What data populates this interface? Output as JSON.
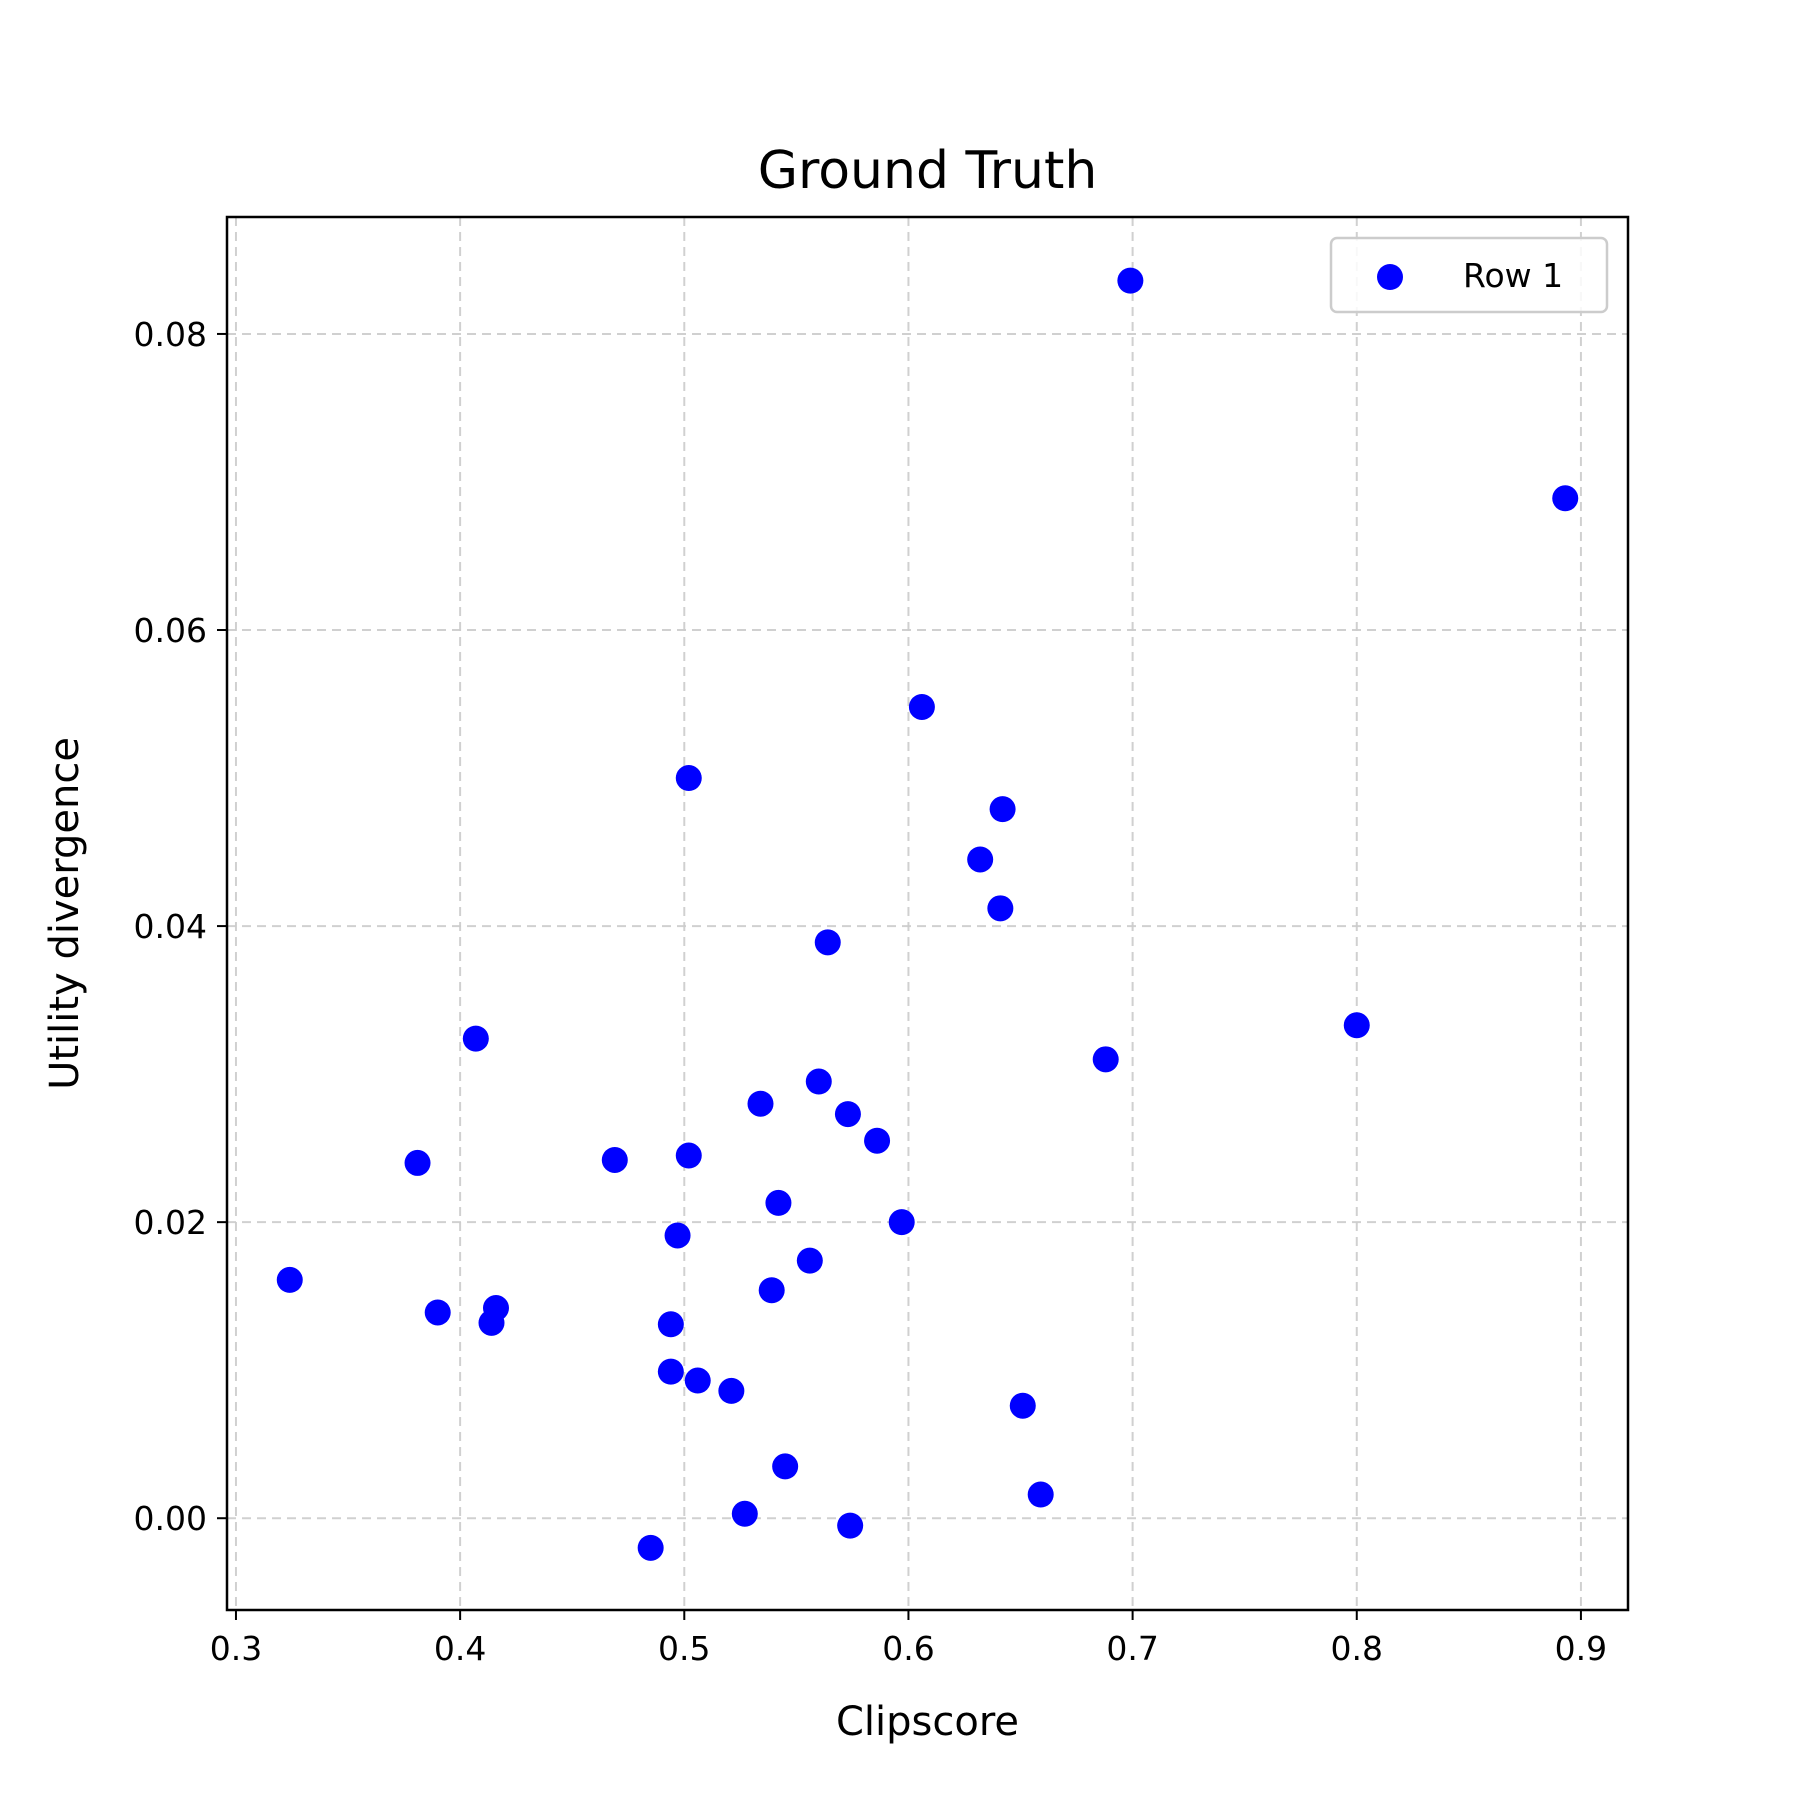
{
  "chart_data": {
    "type": "scatter",
    "title": "Ground Truth",
    "xlabel": "Clipscore",
    "ylabel": "Utility divergence",
    "xlim": [
      0.296,
      0.921
    ],
    "ylim": [
      -0.0062,
      0.0879
    ],
    "xticks": [
      0.3,
      0.4,
      0.5,
      0.6,
      0.7,
      0.8,
      0.9
    ],
    "xtick_labels": [
      "0.3",
      "0.4",
      "0.5",
      "0.6",
      "0.7",
      "0.8",
      "0.9"
    ],
    "yticks": [
      0.0,
      0.02,
      0.04,
      0.06,
      0.08
    ],
    "ytick_labels": [
      "0.00",
      "0.02",
      "0.04",
      "0.06",
      "0.08"
    ],
    "grid": true,
    "legend_position": "top-right",
    "series": [
      {
        "name": "Row 1",
        "color": "#0000ff",
        "points": [
          [
            0.324,
            0.0161
          ],
          [
            0.381,
            0.024
          ],
          [
            0.39,
            0.0139
          ],
          [
            0.407,
            0.0324
          ],
          [
            0.414,
            0.0132
          ],
          [
            0.416,
            0.0142
          ],
          [
            0.469,
            0.0242
          ],
          [
            0.485,
            -0.002
          ],
          [
            0.494,
            0.0131
          ],
          [
            0.494,
            0.0099
          ],
          [
            0.497,
            0.0191
          ],
          [
            0.502,
            0.05
          ],
          [
            0.502,
            0.0245
          ],
          [
            0.506,
            0.0093
          ],
          [
            0.521,
            0.0086
          ],
          [
            0.527,
            0.0003
          ],
          [
            0.534,
            0.028
          ],
          [
            0.539,
            0.0154
          ],
          [
            0.542,
            0.0213
          ],
          [
            0.545,
            0.0035
          ],
          [
            0.556,
            0.0174
          ],
          [
            0.56,
            0.0295
          ],
          [
            0.564,
            0.0389
          ],
          [
            0.573,
            0.0273
          ],
          [
            0.574,
            -0.0005
          ],
          [
            0.586,
            0.0255
          ],
          [
            0.597,
            0.02
          ],
          [
            0.606,
            0.0548
          ],
          [
            0.632,
            0.0445
          ],
          [
            0.642,
            0.0479
          ],
          [
            0.641,
            0.0412
          ],
          [
            0.651,
            0.0076
          ],
          [
            0.659,
            0.0016
          ],
          [
            0.688,
            0.031
          ],
          [
            0.699,
            0.0836
          ],
          [
            0.8,
            0.0333
          ],
          [
            0.893,
            0.0689
          ]
        ]
      }
    ]
  }
}
